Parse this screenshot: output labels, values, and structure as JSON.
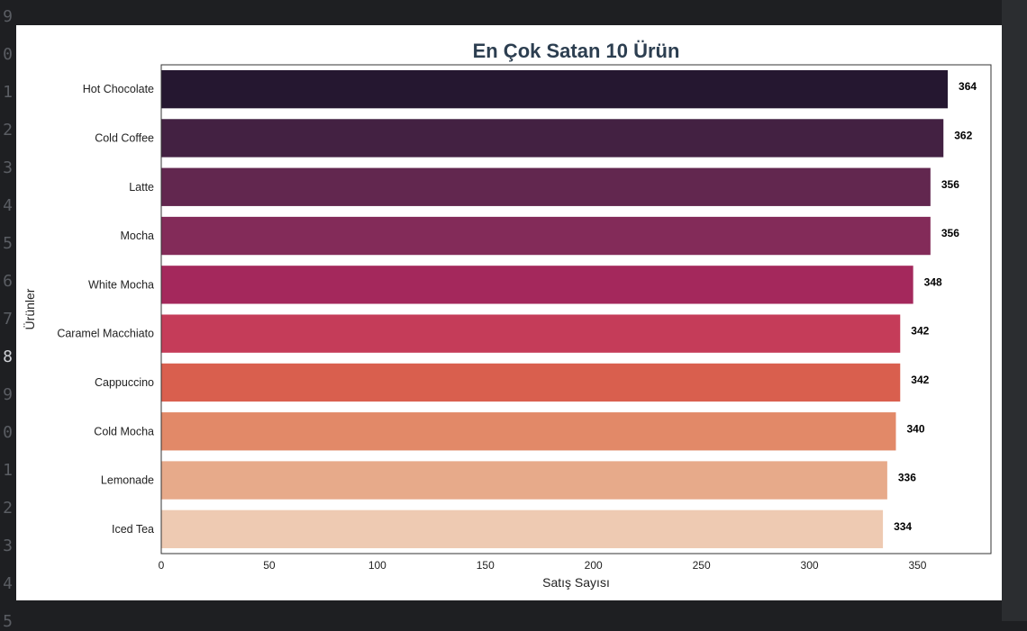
{
  "editor": {
    "gutter_lines": [
      "9",
      "0",
      "1",
      "2",
      "3",
      "4",
      "5",
      "6",
      "7",
      "8",
      "9",
      "0",
      "1",
      "2",
      "3",
      "4",
      "5"
    ],
    "current_line_index": 9
  },
  "chart_data": {
    "type": "bar",
    "orientation": "horizontal",
    "title": "En Çok Satan 10 Ürün",
    "xlabel": "Satış Sayısı",
    "ylabel": "Ürünler",
    "categories": [
      "Hot Chocolate",
      "Cold Coffee",
      "Latte",
      "Mocha",
      "White Mocha",
      "Caramel Macchiato",
      "Cappuccino",
      "Cold Mocha",
      "Lemonade",
      "Iced Tea"
    ],
    "values": [
      364,
      362,
      356,
      356,
      348,
      342,
      342,
      340,
      336,
      334
    ],
    "value_labels": [
      "364",
      "362",
      "356",
      "356",
      "348",
      "342",
      "342",
      "340",
      "336",
      "334"
    ],
    "xticks": [
      0,
      50,
      100,
      150,
      200,
      250,
      300,
      350
    ],
    "xtick_labels": [
      "0",
      "50",
      "100",
      "150",
      "200",
      "250",
      "300",
      "350"
    ],
    "xlim": [
      0,
      384
    ],
    "grid": false,
    "colors": [
      "#251730",
      "#432142",
      "#62274f",
      "#832b59",
      "#a4285c",
      "#c53c59",
      "#d95f4e",
      "#e28968",
      "#e7aa8a",
      "#eecab2"
    ]
  }
}
